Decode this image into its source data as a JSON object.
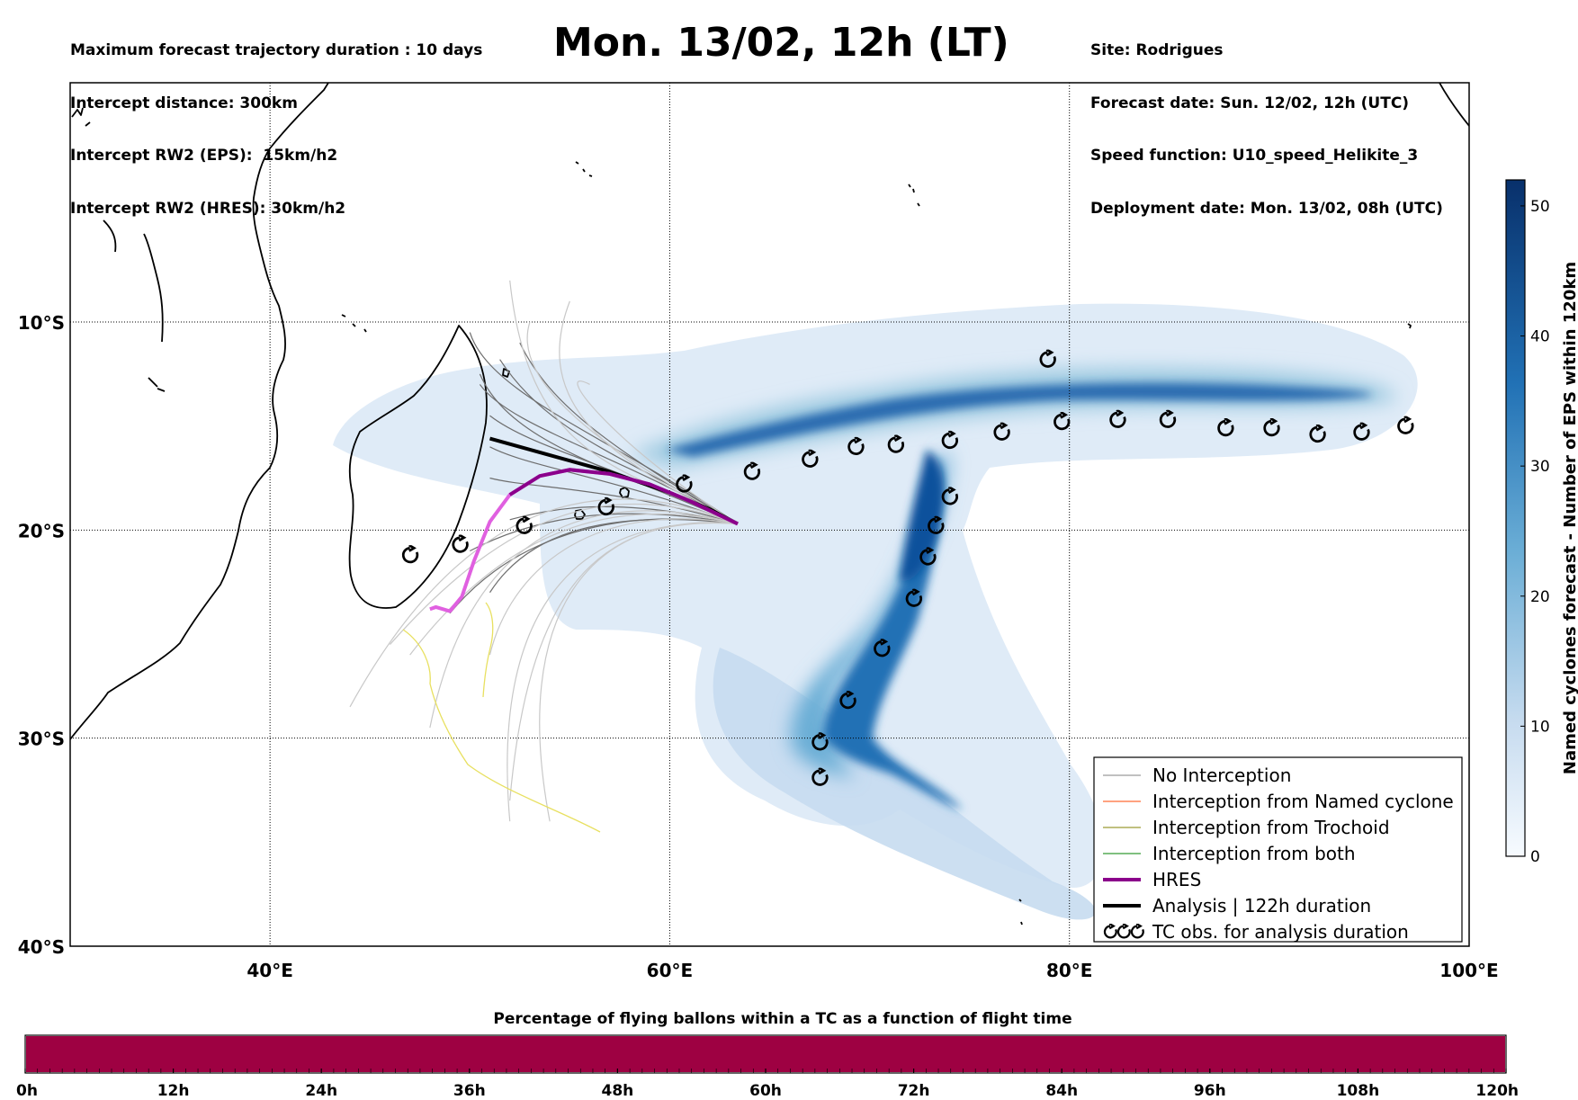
{
  "header_left": [
    "Maximum forecast trajectory duration : 10 days",
    "Intercept distance: 300km",
    "Intercept RW2 (EPS):  15km/h2",
    "Intercept RW2 (HRES): 30km/h2"
  ],
  "header_right": [
    "Site: Rodrigues",
    "Forecast date: Sun. 12/02, 12h (UTC)",
    "Speed function: U10_speed_Helikite_3",
    "Deployment date: Mon. 13/02, 08h (UTC)"
  ],
  "title": "Mon. 13/02, 12h (LT)",
  "map": {
    "lon_range": [
      30,
      100
    ],
    "lat_range": [
      -40,
      1.5
    ],
    "grid": true,
    "x_ticks": [
      {
        "value": 40,
        "label": "40°E"
      },
      {
        "value": 60,
        "label": "60°E"
      },
      {
        "value": 80,
        "label": "80°E"
      },
      {
        "value": 100,
        "label": "100°E"
      }
    ],
    "y_ticks": [
      {
        "value": -10,
        "label": "10°S"
      },
      {
        "value": -20,
        "label": "20°S"
      },
      {
        "value": -30,
        "label": "30°S"
      },
      {
        "value": -40,
        "label": "40°S"
      }
    ],
    "deployment_site": {
      "lon": 63.4,
      "lat": -19.7
    }
  },
  "colors": {
    "no_interception": "#808080",
    "named_cyclone": "#ff4500",
    "trochoid": "#808000",
    "both": "#008000",
    "hres": "#8b008b",
    "analysis": "#000000",
    "cyclone_dark": "#08306b",
    "cyclone_light": "#dbe9f6",
    "time_bar": "#9e0142"
  },
  "legend": {
    "position": "lower-right",
    "items": [
      {
        "label": "No Interception",
        "color": "#808080",
        "width": 1
      },
      {
        "label": "Interception from Named cyclone",
        "color": "#ff4500",
        "width": 1
      },
      {
        "label": "Interception from Trochoid",
        "color": "#808000",
        "width": 1
      },
      {
        "label": "Interception from both",
        "color": "#008000",
        "width": 1
      },
      {
        "label": "HRES",
        "color": "#8b008b",
        "width": 4
      },
      {
        "label": "Analysis | 122h duration",
        "color": "#000000",
        "width": 4
      },
      {
        "label": "TC obs. for analysis duration",
        "symbol": "cyclone"
      }
    ]
  },
  "colorbar": {
    "label": "Named cyclones forecast - Number of EPS within 120km",
    "min": 0,
    "max": 52,
    "ticks": [
      0,
      10,
      20,
      30,
      40,
      50
    ]
  },
  "time_bar": {
    "title": "Percentage of flying ballons within a TC as a function of flight time",
    "ticks": [
      "0h",
      "12h",
      "24h",
      "36h",
      "48h",
      "60h",
      "72h",
      "84h",
      "96h",
      "108h",
      "120h"
    ],
    "percent_within_tc": 100
  },
  "chart_data": {
    "type": "map",
    "analysis_track": [
      [
        51,
        -15.6
      ],
      [
        54,
        -16.4
      ],
      [
        57,
        -17.2
      ],
      [
        60,
        -18.2
      ],
      [
        62,
        -19.0
      ],
      [
        63.4,
        -19.7
      ]
    ],
    "hres_track": [
      [
        48,
        -23.8
      ],
      [
        48.3,
        -23.7
      ],
      [
        49,
        -23.9
      ],
      [
        49.6,
        -23.2
      ],
      [
        50.2,
        -21.5
      ],
      [
        51,
        -19.6
      ],
      [
        52,
        -18.3
      ],
      [
        53.5,
        -17.4
      ],
      [
        55,
        -17.1
      ],
      [
        57,
        -17.3
      ],
      [
        59,
        -17.8
      ],
      [
        61,
        -18.6
      ],
      [
        63.4,
        -19.7
      ]
    ],
    "cyclone_observations_track_1": [
      [
        47,
        -21.2
      ],
      [
        49.5,
        -20.7
      ],
      [
        52.7,
        -19.8
      ],
      [
        56.8,
        -18.9
      ],
      [
        60.7,
        -17.8
      ],
      [
        64.1,
        -17.2
      ],
      [
        67,
        -16.6
      ],
      [
        69.3,
        -16.0
      ],
      [
        71.3,
        -15.9
      ],
      [
        74,
        -15.7
      ],
      [
        76.6,
        -15.3
      ],
      [
        79.6,
        -14.8
      ],
      [
        82.4,
        -14.7
      ],
      [
        84.9,
        -14.7
      ],
      [
        87.8,
        -15.1
      ],
      [
        90.1,
        -15.1
      ],
      [
        92.4,
        -15.4
      ],
      [
        94.6,
        -15.3
      ],
      [
        96.8,
        -15.0
      ]
    ],
    "cyclone_observations_track_2": [
      [
        74,
        -18.4
      ],
      [
        73.3,
        -19.8
      ],
      [
        72.9,
        -21.3
      ],
      [
        72.2,
        -23.3
      ],
      [
        70.6,
        -25.7
      ],
      [
        68.9,
        -28.2
      ],
      [
        67.5,
        -30.2
      ],
      [
        67.5,
        -31.9
      ]
    ],
    "cyclone_observation_outlier": [
      [
        78.9,
        -11.8
      ]
    ]
  }
}
